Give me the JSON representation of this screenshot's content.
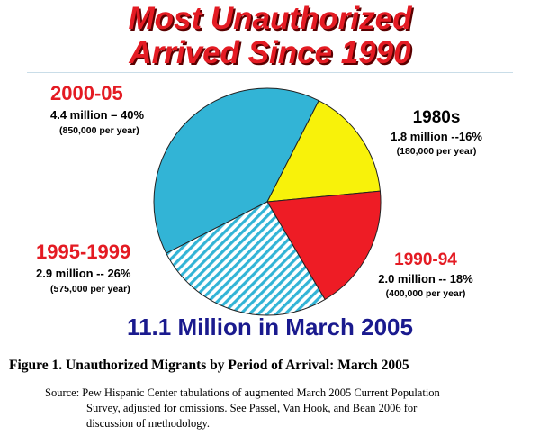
{
  "title": {
    "line1": "Most Unauthorized",
    "line2": "Arrived Since 1990"
  },
  "chart_data": {
    "type": "pie",
    "slices": [
      {
        "label": "2000-05",
        "amount": "4.4 million – 40%",
        "rate": "(850,000 per year)",
        "value": 40,
        "color": "#32b4d6",
        "pattern": "solid"
      },
      {
        "label": "1980s",
        "amount": "1.8 million --16%",
        "rate": "(180,000 per year)",
        "value": 16,
        "color": "#f8f20a",
        "pattern": "solid"
      },
      {
        "label": "1990-94",
        "amount": "2.0 million -- 18%",
        "rate": "(400,000 per year)",
        "value": 18,
        "color": "#ee1c25",
        "pattern": "solid"
      },
      {
        "label": "1995-1999",
        "amount": "2.9 million -- 26%",
        "rate": "(575,000 per year)",
        "value": 26,
        "color": "#32b4d6",
        "pattern": "hatched"
      }
    ],
    "total_label": "11.1 Million in March 2005"
  },
  "caption": "Figure 1.  Unauthorized Migrants by Period of Arrival:  March 2005",
  "source": {
    "line1": "Source:  Pew Hispanic Center tabulations of augmented March 2005 Current Population",
    "line2": "Survey, adjusted for omissions.  See Passel, Van Hook, and Bean 2006 for",
    "line3": "discussion of methodology."
  }
}
